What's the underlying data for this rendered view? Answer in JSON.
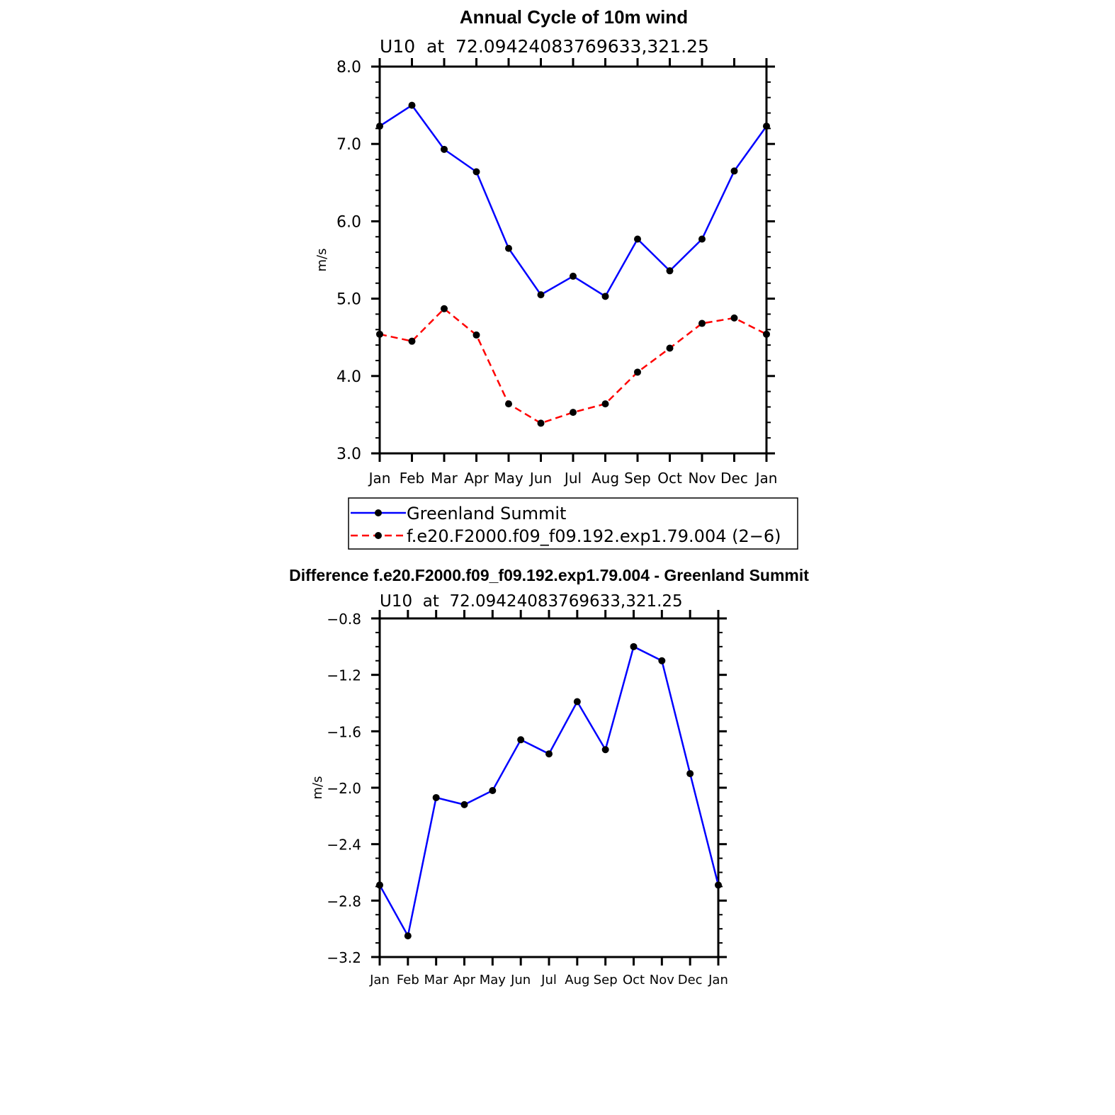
{
  "chart_data": [
    {
      "type": "line",
      "title": "Annual Cycle of 10m wind",
      "subtitle": "U10  at  72.09424083769633,321.25",
      "xlabel": "",
      "ylabel": "m/s",
      "categories": [
        "Jan",
        "Feb",
        "Mar",
        "Apr",
        "May",
        "Jun",
        "Jul",
        "Aug",
        "Sep",
        "Oct",
        "Nov",
        "Dec",
        "Jan"
      ],
      "yticks": [
        "3.0",
        "4.0",
        "5.0",
        "6.0",
        "7.0",
        "8.0"
      ],
      "ylim": [
        3.0,
        8.0
      ],
      "series": [
        {
          "name": "Greenland Summit",
          "color": "#0000ff",
          "dash": "solid",
          "values": [
            7.23,
            7.5,
            6.93,
            6.64,
            5.65,
            5.05,
            5.29,
            5.03,
            5.77,
            5.36,
            5.77,
            6.65,
            7.23
          ]
        },
        {
          "name": "f.e20.F2000.f09_f09.192.exp1.79.004 (2−6)",
          "color": "#ff0000",
          "dash": "dashed",
          "values": [
            4.54,
            4.45,
            4.87,
            4.53,
            3.64,
            3.39,
            3.53,
            3.64,
            4.05,
            4.36,
            4.68,
            4.75,
            4.54
          ]
        }
      ],
      "legend": "below"
    },
    {
      "type": "line",
      "title": "Difference f.e20.F2000.f09_f09.192.exp1.79.004 - Greenland Summit",
      "subtitle": "U10  at  72.09424083769633,321.25",
      "xlabel": "",
      "ylabel": "m/s",
      "categories": [
        "Jan",
        "Feb",
        "Mar",
        "Apr",
        "May",
        "Jun",
        "Jul",
        "Aug",
        "Sep",
        "Oct",
        "Nov",
        "Dec",
        "Jan"
      ],
      "yticks": [
        "−3.2",
        "−2.8",
        "−2.4",
        "−2.0",
        "−1.6",
        "−1.2",
        "−0.8"
      ],
      "ylim": [
        -3.2,
        -0.8
      ],
      "series": [
        {
          "name": "Difference",
          "color": "#0000ff",
          "dash": "solid",
          "values": [
            -2.69,
            -3.05,
            -2.07,
            -2.12,
            -2.02,
            -1.66,
            -1.76,
            -1.39,
            -1.73,
            -1.0,
            -1.1,
            -1.9,
            -2.69
          ]
        }
      ]
    }
  ]
}
